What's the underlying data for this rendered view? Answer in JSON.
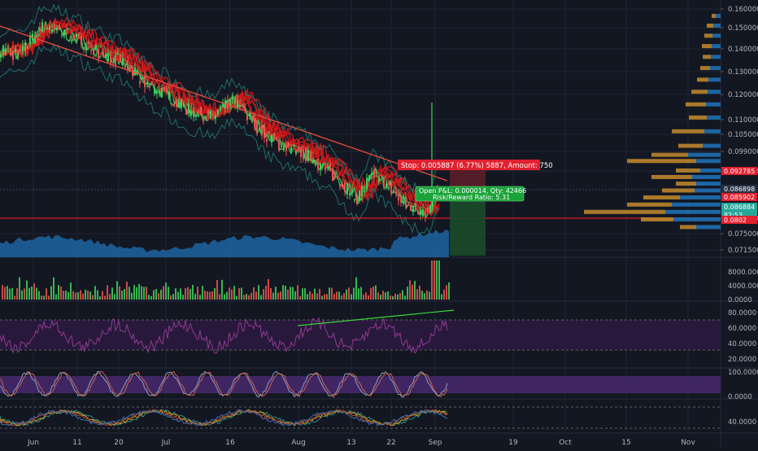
{
  "colors": {
    "background": "#131722",
    "grid": "#1f2433",
    "axis_text": "#b2b5be",
    "up": "#26a69a",
    "up_bright": "#3ed15a",
    "down": "#ef5350",
    "ema_ribbon": "#d81b1b",
    "bollinger": "#1e6f6a",
    "support_line": "#e01b24",
    "trend_green": "#3bd43b",
    "trend_red": "#e74c3c",
    "volume_profile_blue": "#1f6fb2",
    "volume_profile_orange": "#c58b2b",
    "rsi_line": "#8e3a8e",
    "rsi_band": "#2b1a3f",
    "stoch_k": "#8aa0c8",
    "stoch_d": "#d0614e",
    "stoch_band": "#4b2a73",
    "profit_zone": "#1b4a2a",
    "loss_zone": "#5a1e28",
    "label_red": "#e0212f",
    "label_green": "#1aa339",
    "label_blue": "#2962ff"
  },
  "chart_data": {
    "type": "line",
    "title": "",
    "x_axis": {
      "tick_labels": [
        "Jun",
        "11",
        "20",
        "Jul",
        "16",
        "Aug",
        "13",
        "22",
        "Sep",
        "19",
        "Oct",
        "15",
        "Nov"
      ]
    },
    "price_pane": {
      "scale": "log",
      "ylim": [
        0.07,
        0.16
      ],
      "tick_labels": [
        "0.160000",
        "0.150000",
        "0.140000",
        "0.130000",
        "0.120000",
        "0.110000",
        "0.105000",
        "0.099000",
        "0.095000",
        "0.080000",
        "0.075000",
        "0.071500"
      ],
      "price_series": {
        "name": "",
        "x": [
          "Jun 1",
          "Jun 4",
          "Jun 8",
          "Jun 11",
          "Jun 15",
          "Jun 20",
          "Jun 25",
          "Jul 1",
          "Jul 6",
          "Jul 11",
          "Jul 16",
          "Jul 21",
          "Jul 26",
          "Jul 31",
          "Aug 5",
          "Aug 10",
          "Aug 13",
          "Aug 17",
          "Aug 22",
          "Aug 27",
          "Sep 1"
        ],
        "values": [
          0.138,
          0.136,
          0.15,
          0.145,
          0.138,
          0.133,
          0.124,
          0.119,
          0.113,
          0.11,
          0.117,
          0.106,
          0.1,
          0.097,
          0.092,
          0.084,
          0.091,
          0.087,
          0.082,
          0.08,
          0.0866
        ]
      },
      "horizontal_support": 0.0802,
      "price_labels": [
        "0.092785",
        "0.086898",
        "0.085902",
        "0.086884",
        "82:53",
        "0.0802"
      ],
      "position_tool": {
        "stop_label": "Stop: 0.005887 (6.77%) 5887, Amount: 750",
        "open_label": "Open P&L: 0.000014, Qty: 42466",
        "rr_label": "Risk/Reward Ratio: 5.31",
        "entry": 0.0866,
        "stop": 0.0928,
        "target": 0.0708
      },
      "volume_profile": {
        "levels": [
          0.155,
          0.15,
          0.145,
          0.14,
          0.135,
          0.13,
          0.125,
          0.12,
          0.115,
          0.11,
          0.105,
          0.1,
          0.097,
          0.095,
          0.092,
          0.09,
          0.088,
          0.086,
          0.084,
          0.082,
          0.08,
          0.078,
          0.076
        ],
        "buy": [
          6,
          9,
          10,
          11,
          12,
          13,
          15,
          16,
          18,
          17,
          20,
          22,
          40,
          30,
          25,
          35,
          30,
          32,
          50,
          60,
          68,
          58,
          30
        ],
        "sell": [
          5,
          8,
          10,
          12,
          10,
          12,
          14,
          20,
          25,
          22,
          40,
          30,
          45,
          85,
          30,
          50,
          25,
          40,
          45,
          55,
          100,
          40,
          20
        ]
      }
    },
    "volume_pane": {
      "tick_labels": [
        "8000.0000",
        "4000.0000",
        "0.0000"
      ],
      "ylim": [
        0,
        10000
      ]
    },
    "rsi_pane": {
      "tick_labels": [
        "80.0000",
        "60.0000",
        "40.0000",
        "20.0000"
      ],
      "ylim": [
        10,
        90
      ],
      "band": [
        30,
        70
      ]
    },
    "stoch_pane": {
      "tick_labels": [
        "100.0000",
        "0.0000"
      ],
      "ylim": [
        0,
        100
      ],
      "band": [
        20,
        80
      ]
    },
    "osc_pane": {
      "tick_labels": [
        "40.0000"
      ]
    }
  }
}
